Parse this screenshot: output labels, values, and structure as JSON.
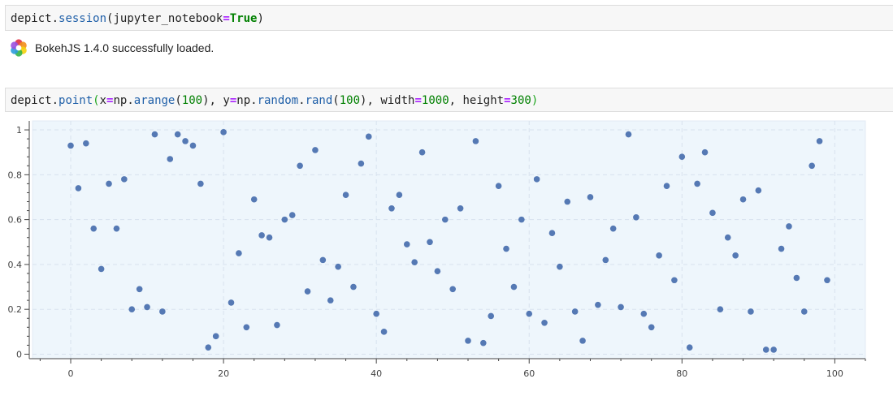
{
  "cells": {
    "session_code": {
      "obj": "depict",
      "dot": ".",
      "func": "session",
      "open": "(",
      "arg": "jupyter_notebook",
      "eq": "=",
      "val": "True",
      "close": ")"
    },
    "bokeh_message": "BokehJS 1.4.0 successfully loaded.",
    "point_code": {
      "obj": "depict",
      "dot": ".",
      "func": "point",
      "open": "(",
      "x_name": "x",
      "eq1": "=",
      "x_mod": "np",
      "dot2": ".",
      "x_func": "arange",
      "x_open": "(",
      "x_num": "100",
      "x_close": ")",
      "comma1": ", ",
      "y_name": "y",
      "eq2": "=",
      "y_mod": "np",
      "dot3": ".",
      "y_sub": "random",
      "dot4": ".",
      "y_func": "rand",
      "y_open": "(",
      "y_num": "100",
      "y_close": ")",
      "comma2": ", ",
      "w_name": "width",
      "eq3": "=",
      "w_num": "1000",
      "comma3": ", ",
      "h_name": "height",
      "eq4": "=",
      "h_num": "300",
      "close": ")"
    }
  },
  "colors": {
    "point": "#4c72b0",
    "plot_bg": "#eef6fc",
    "grid": "#d8e2ee",
    "axis": "#444444"
  },
  "chart_data": {
    "type": "scatter",
    "xlim": [
      -5,
      104
    ],
    "ylim": [
      -0.02,
      1.04
    ],
    "x_ticks": [
      0,
      20,
      40,
      60,
      80,
      100
    ],
    "y_ticks": [
      0,
      0.2,
      0.4,
      0.6,
      0.8,
      1
    ],
    "x_tick_labels": [
      "0",
      "20",
      "40",
      "60",
      "80",
      "100"
    ],
    "y_tick_labels": [
      "0",
      "0.2",
      "0.4",
      "0.6",
      "0.8",
      "1"
    ],
    "x_minor_ticks": [
      -4,
      4,
      8,
      12,
      16,
      24,
      28,
      32,
      36,
      44,
      48,
      52,
      56,
      64,
      68,
      72,
      76,
      84,
      88,
      92,
      96,
      104
    ],
    "grid": true,
    "x": [
      0,
      1,
      2,
      3,
      4,
      5,
      6,
      7,
      8,
      9,
      10,
      11,
      12,
      13,
      14,
      15,
      16,
      17,
      18,
      19,
      20,
      21,
      22,
      23,
      24,
      25,
      26,
      27,
      28,
      29,
      30,
      31,
      32,
      33,
      34,
      35,
      36,
      37,
      38,
      39,
      40,
      41,
      42,
      43,
      44,
      45,
      46,
      47,
      48,
      49,
      50,
      51,
      52,
      53,
      54,
      55,
      56,
      57,
      58,
      59,
      60,
      61,
      62,
      63,
      64,
      65,
      66,
      67,
      68,
      69,
      70,
      71,
      72,
      73,
      74,
      75,
      76,
      77,
      78,
      79,
      80,
      81,
      82,
      83,
      84,
      85,
      86,
      87,
      88,
      89,
      90,
      91,
      92,
      93,
      94,
      95,
      96,
      97,
      98,
      99
    ],
    "y": [
      0.93,
      0.74,
      0.94,
      0.56,
      0.38,
      0.76,
      0.56,
      0.78,
      0.2,
      0.29,
      0.21,
      0.98,
      0.19,
      0.87,
      0.98,
      0.95,
      0.93,
      0.76,
      0.03,
      0.08,
      0.99,
      0.23,
      0.45,
      0.12,
      0.69,
      0.53,
      0.52,
      0.13,
      0.6,
      0.62,
      0.84,
      0.28,
      0.91,
      0.42,
      0.24,
      0.39,
      0.71,
      0.3,
      0.85,
      0.97,
      0.18,
      0.1,
      0.65,
      0.71,
      0.49,
      0.41,
      0.9,
      0.5,
      0.37,
      0.6,
      0.29,
      0.65,
      0.06,
      0.95,
      0.05,
      0.17,
      0.75,
      0.47,
      0.3,
      0.6,
      0.18,
      0.78,
      0.14,
      0.54,
      0.39,
      0.68,
      0.19,
      0.06,
      0.7,
      0.22,
      0.42,
      0.56,
      0.21,
      0.98,
      0.61,
      0.18,
      0.12,
      0.44,
      0.75,
      0.33,
      0.88,
      0.03,
      0.76,
      0.9,
      0.63,
      0.2,
      0.52,
      0.44,
      0.69,
      0.19,
      0.73,
      0.02,
      0.02,
      0.47,
      0.57,
      0.34,
      0.19,
      0.84,
      0.95,
      0.33
    ]
  }
}
